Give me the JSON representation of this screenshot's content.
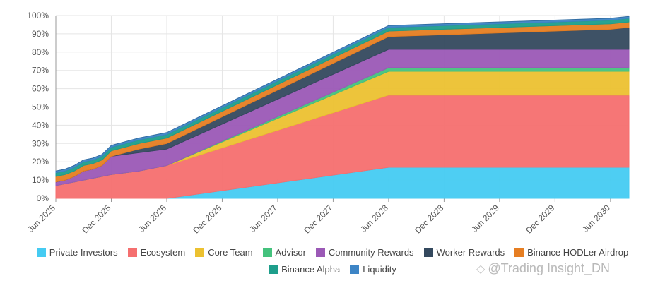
{
  "watermark": {
    "text": "@Trading Insight_DN",
    "logo_icon": "binance-square-logo-icon"
  },
  "chart_data": {
    "type": "area",
    "stacked": true,
    "title": "",
    "xlabel": "",
    "ylabel": "",
    "x": [
      "2025-06",
      "2025-07",
      "2025-08",
      "2025-09",
      "2025-10",
      "2025-11",
      "2025-12",
      "2026-03",
      "2026-06",
      "2028-06",
      "2030-06",
      "2030-08"
    ],
    "x_tick_labels": [
      "Jun 2025",
      "Dec 2025",
      "Jun 2026",
      "Dec 2026",
      "Jun 2027",
      "Dec 2027",
      "Jun 2028",
      "Dec 2028",
      "Jun 2029",
      "Dec 2029",
      "Jun 2030"
    ],
    "y_tick_labels": [
      "0%",
      "10%",
      "20%",
      "30%",
      "40%",
      "50%",
      "60%",
      "70%",
      "80%",
      "90%",
      "100%"
    ],
    "ylim": [
      0,
      100
    ],
    "y_unit": "%",
    "grid": true,
    "legend_position": "bottom",
    "series": [
      {
        "name": "Private Investors",
        "color": "#45cbf2",
        "values": [
          0,
          0,
          0,
          0,
          0,
          0,
          0,
          0,
          0,
          17,
          17,
          17
        ]
      },
      {
        "name": "Ecosystem",
        "color": "#f56f6f",
        "values": [
          7,
          8,
          9,
          10,
          11,
          12,
          13,
          15,
          18,
          39.5,
          39.5,
          39.5
        ]
      },
      {
        "name": "Core Team",
        "color": "#ecc130",
        "values": [
          0,
          0,
          0,
          0,
          0,
          0,
          0,
          0,
          0,
          13,
          13,
          13
        ]
      },
      {
        "name": "Advisor",
        "color": "#44c27d",
        "values": [
          0,
          0,
          0,
          0,
          0,
          0,
          0,
          0,
          0,
          2,
          2,
          2
        ]
      },
      {
        "name": "Community Rewards",
        "color": "#9b59b6",
        "values": [
          2,
          2,
          3,
          5,
          5,
          6,
          10,
          10,
          9,
          10,
          10,
          10
        ]
      },
      {
        "name": "Worker Rewards",
        "color": "#34495e",
        "values": [
          0,
          0,
          0,
          0,
          0,
          0,
          0,
          2,
          3,
          7,
          11,
          12
        ]
      },
      {
        "name": "Binance HODLer Airdrop",
        "color": "#e67e22",
        "values": [
          3,
          3,
          3,
          3,
          3,
          3,
          3,
          3,
          3,
          3,
          3,
          3
        ]
      },
      {
        "name": "Binance Alpha",
        "color": "#1e9e8b",
        "values": [
          2,
          2,
          2,
          2,
          2,
          2,
          2,
          2,
          2,
          2,
          2,
          2
        ]
      },
      {
        "name": "Liquidity",
        "color": "#3d85c6",
        "values": [
          1,
          1,
          1,
          1,
          1,
          1,
          1,
          1,
          1,
          1,
          1,
          1
        ]
      }
    ]
  }
}
